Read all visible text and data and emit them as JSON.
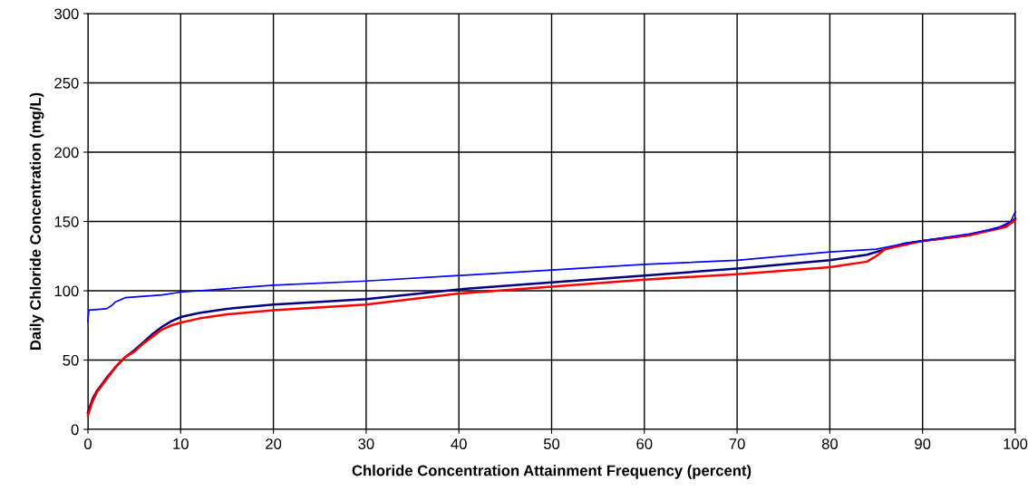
{
  "chart_data": {
    "type": "line",
    "xlabel": "Chloride Concentration Attainment Frequency (percent)",
    "ylabel": "Daily Chloride Concentration (mg/L)",
    "xlim": [
      0,
      100
    ],
    "xticks": [
      0,
      10,
      20,
      30,
      40,
      50,
      60,
      70,
      80,
      90,
      100
    ],
    "ylim": [
      0,
      300
    ],
    "yticks": [
      0,
      50,
      100,
      150,
      200,
      250,
      300
    ],
    "grid": true,
    "marker": "none",
    "line_style": "solid",
    "series": [
      {
        "color": "#0000ff",
        "x": [
          0,
          0.1,
          2,
          2.5,
          3,
          4,
          6,
          8,
          10,
          12,
          20,
          30,
          40,
          50,
          60,
          70,
          80,
          85,
          88,
          90,
          95,
          98,
          99.5,
          100
        ],
        "values": [
          78,
          86,
          87,
          89,
          92,
          95,
          96,
          97,
          99,
          100,
          104,
          107,
          111,
          115,
          119,
          122,
          128,
          130,
          134,
          136,
          141,
          145,
          150,
          157
        ]
      },
      {
        "color": "#000080",
        "x": [
          0,
          0.5,
          1,
          2,
          3,
          4,
          5,
          6,
          7,
          8,
          9,
          10,
          12,
          15,
          20,
          30,
          40,
          50,
          60,
          70,
          80,
          84,
          86,
          88,
          90,
          95,
          99,
          100
        ],
        "values": [
          12,
          22,
          28,
          37,
          45,
          52,
          57,
          63,
          69,
          74,
          78,
          81,
          84,
          87,
          90,
          94,
          101,
          106,
          111,
          116,
          122,
          126,
          130,
          134,
          136,
          140,
          147,
          152
        ]
      },
      {
        "color": "#ff0000",
        "x": [
          0,
          0.5,
          1,
          2,
          3,
          4,
          5,
          6,
          7,
          8,
          9,
          10,
          12,
          15,
          20,
          30,
          40,
          50,
          60,
          70,
          80,
          84,
          85,
          86,
          88,
          90,
          95,
          99,
          100
        ],
        "values": [
          10,
          20,
          27,
          36,
          45,
          52,
          56,
          62,
          67,
          72,
          75,
          77,
          80,
          83,
          86,
          90,
          98,
          103,
          108,
          112,
          117,
          121,
          125,
          130,
          133,
          136,
          140,
          146,
          151
        ]
      }
    ]
  }
}
